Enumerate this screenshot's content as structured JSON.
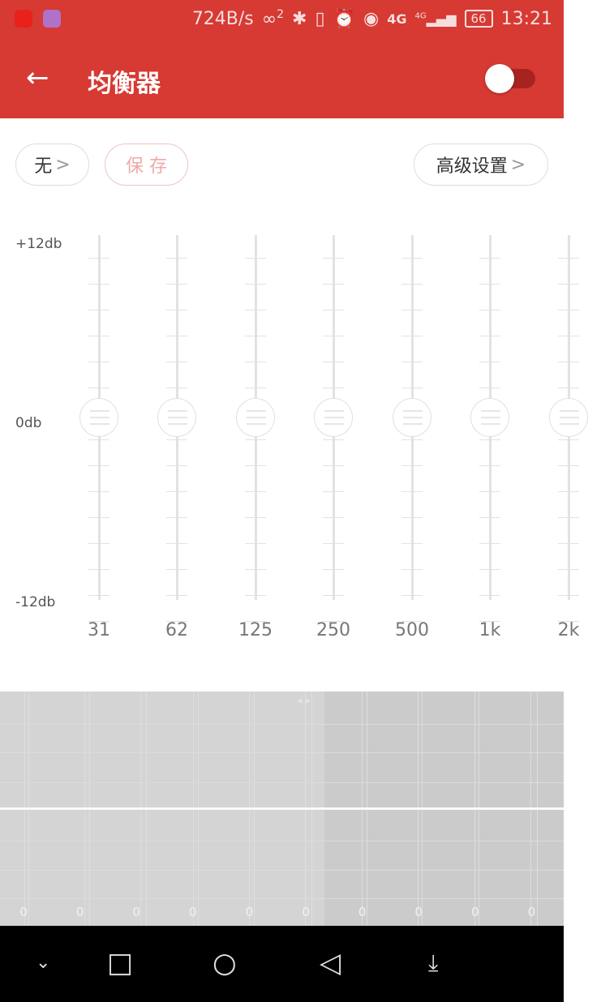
{
  "status": {
    "net_speed": "724B/s",
    "signal_sim": "2",
    "network": "4G",
    "network2": "4G",
    "battery": "66",
    "time": "13:21"
  },
  "header": {
    "title": "均衡器",
    "toggle_on": false
  },
  "toolbar": {
    "preset_label": "无",
    "save_label": "保 存",
    "advanced_label": "高级设置",
    "chevron": ">"
  },
  "scale": {
    "top": "+12db",
    "mid": "0db",
    "bottom": "-12db"
  },
  "bands": [
    {
      "label": "31",
      "value": 0
    },
    {
      "label": "62",
      "value": 0
    },
    {
      "label": "125",
      "value": 0
    },
    {
      "label": "250",
      "value": 0
    },
    {
      "label": "500",
      "value": 0
    },
    {
      "label": "1k",
      "value": 0
    },
    {
      "label": "2k",
      "value": 0
    }
  ],
  "graph": {
    "values": [
      "0",
      "0",
      "0",
      "0",
      "0",
      "0",
      "0",
      "0",
      "0",
      "0"
    ]
  },
  "colors": {
    "accent": "#d63a33"
  }
}
